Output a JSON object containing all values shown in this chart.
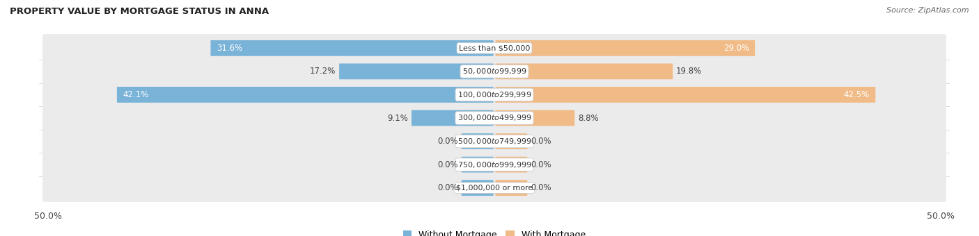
{
  "title": "PROPERTY VALUE BY MORTGAGE STATUS IN ANNA",
  "source": "Source: ZipAtlas.com",
  "categories": [
    "Less than $50,000",
    "$50,000 to $99,999",
    "$100,000 to $299,999",
    "$300,000 to $499,999",
    "$500,000 to $749,999",
    "$750,000 to $999,999",
    "$1,000,000 or more"
  ],
  "without_mortgage": [
    31.6,
    17.2,
    42.1,
    9.1,
    0.0,
    0.0,
    0.0
  ],
  "with_mortgage": [
    29.0,
    19.8,
    42.5,
    8.8,
    0.0,
    0.0,
    0.0
  ],
  "blue_color": "#7ab3d8",
  "orange_color": "#f0bb87",
  "row_bg_color": "#ebebeb",
  "axis_limit": 50.0,
  "label_fontsize": 8.5,
  "title_fontsize": 9.5,
  "source_fontsize": 8,
  "category_fontsize": 8,
  "legend_fontsize": 9,
  "stub_size": 3.5
}
